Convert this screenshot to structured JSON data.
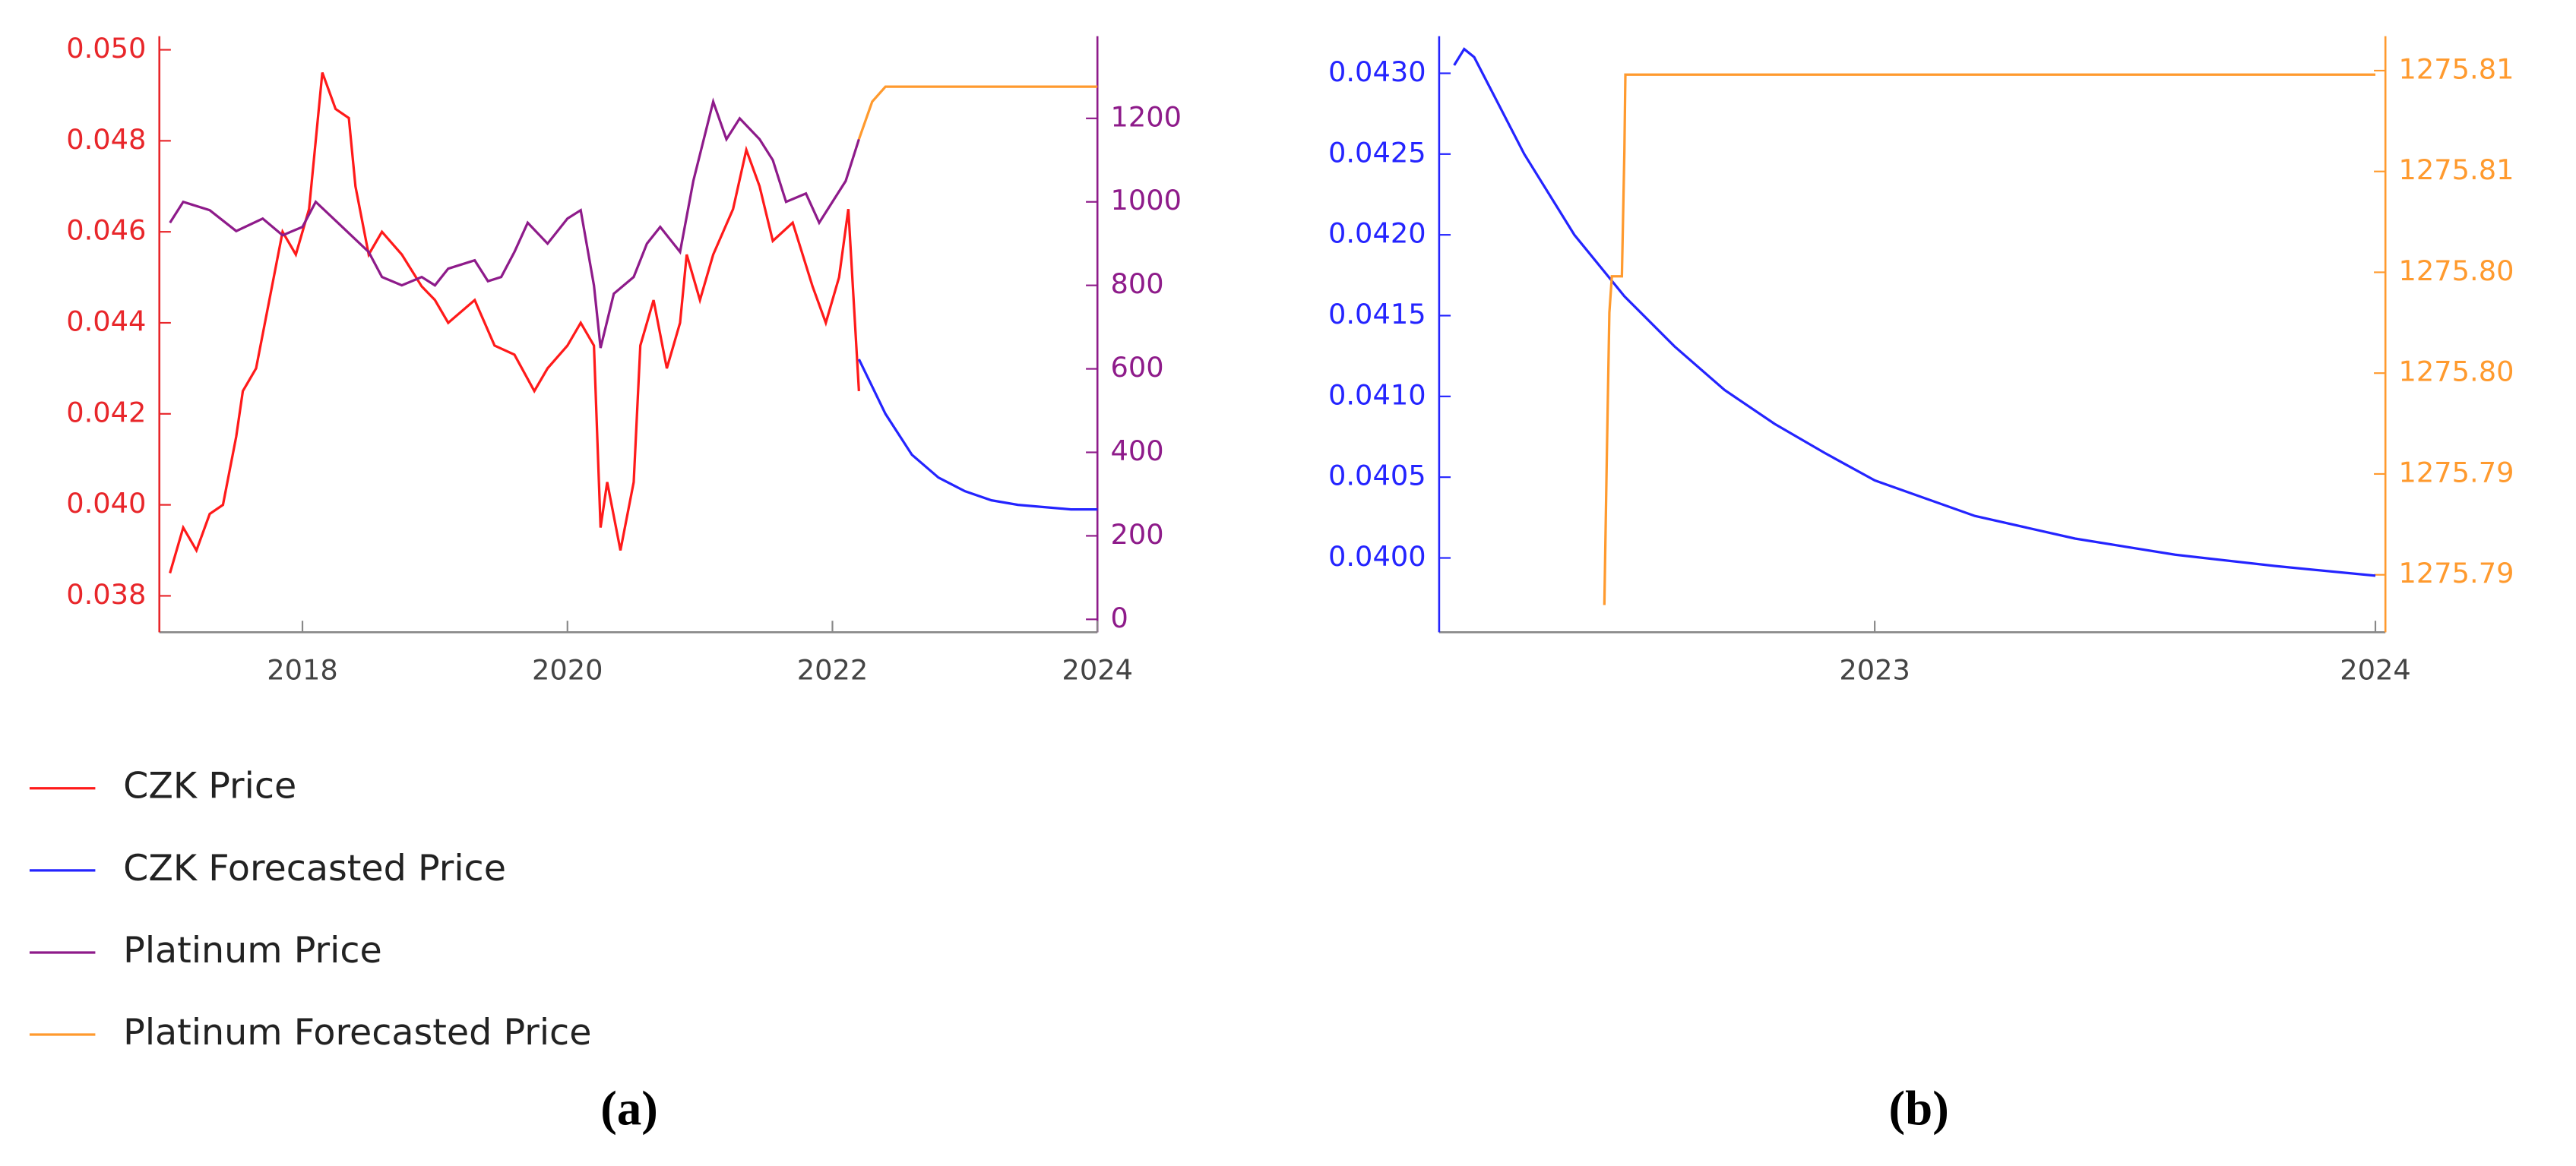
{
  "chart_data": [
    {
      "type": "line",
      "panel_label": "(a)",
      "xlim": [
        2016.92,
        2024.0
      ],
      "xticks": [
        2018,
        2020,
        2022,
        2024
      ],
      "ylim": [
        0.0372,
        0.0503
      ],
      "yticks": [
        0.038,
        {
          "value": 0.04,
          "label": "0.040"
        },
        0.042,
        0.044,
        0.046,
        0.048,
        {
          "value": 0.05,
          "label": "0.050"
        }
      ],
      "y2lim": [
        -31,
        1397
      ],
      "y2ticks": [
        0,
        200,
        400,
        600,
        800,
        1000,
        1200
      ],
      "y_axis_color": "#e8262a",
      "y2_axis_color": "#8e1b8a",
      "legend": "bottom-left",
      "series": [
        {
          "name": "CZK Price",
          "color": "#ff1a1a",
          "x": [
            2017.0,
            2017.1,
            2017.2,
            2017.3,
            2017.4,
            2017.5,
            2017.55,
            2017.65,
            2017.75,
            2017.85,
            2017.95,
            2018.05,
            2018.1,
            2018.15,
            2018.25,
            2018.35,
            2018.4,
            2018.5,
            2018.6,
            2018.75,
            2018.9,
            2019.0,
            2019.1,
            2019.3,
            2019.45,
            2019.6,
            2019.75,
            2019.85,
            2020.0,
            2020.1,
            2020.2,
            2020.25,
            2020.3,
            2020.4,
            2020.5,
            2020.55,
            2020.65,
            2020.75,
            2020.85,
            2020.9,
            2021.0,
            2021.1,
            2021.25,
            2021.35,
            2021.45,
            2021.55,
            2021.7,
            2021.85,
            2021.95,
            2022.05,
            2022.12,
            2022.17,
            2022.2
          ],
          "values": [
            0.0385,
            0.0395,
            0.039,
            0.0398,
            0.04,
            0.0415,
            0.0425,
            0.043,
            0.0445,
            0.046,
            0.0455,
            0.0465,
            0.048,
            0.0495,
            0.0487,
            0.0485,
            0.047,
            0.0455,
            0.046,
            0.0455,
            0.0448,
            0.0445,
            0.044,
            0.0445,
            0.0435,
            0.0433,
            0.0425,
            0.043,
            0.0435,
            0.044,
            0.0435,
            0.0395,
            0.0405,
            0.039,
            0.0405,
            0.0435,
            0.0445,
            0.043,
            0.044,
            0.0455,
            0.0445,
            0.0455,
            0.0465,
            0.0478,
            0.047,
            0.0458,
            0.0462,
            0.0448,
            0.044,
            0.045,
            0.0465,
            0.044,
            0.0425
          ]
        },
        {
          "name": "CZK Forecasted Price",
          "color": "#2424ff",
          "x": [
            2022.2,
            2022.4,
            2022.6,
            2022.8,
            2023.0,
            2023.2,
            2023.4,
            2023.6,
            2023.8,
            2024.0
          ],
          "values": [
            0.0432,
            0.042,
            0.0411,
            0.0406,
            0.0403,
            0.0401,
            0.04,
            0.03995,
            0.0399,
            0.0399
          ]
        },
        {
          "name": "Platinum Price",
          "color": "#8e1b8a",
          "axis": "y2",
          "x": [
            2017.0,
            2017.1,
            2017.3,
            2017.5,
            2017.7,
            2017.85,
            2018.0,
            2018.1,
            2018.3,
            2018.5,
            2018.6,
            2018.75,
            2018.9,
            2019.0,
            2019.1,
            2019.3,
            2019.4,
            2019.5,
            2019.6,
            2019.7,
            2019.85,
            2020.0,
            2020.1,
            2020.2,
            2020.25,
            2020.35,
            2020.5,
            2020.6,
            2020.7,
            2020.85,
            2020.95,
            2021.1,
            2021.2,
            2021.3,
            2021.45,
            2021.55,
            2021.65,
            2021.8,
            2021.9,
            2022.0,
            2022.1,
            2022.2
          ],
          "values": [
            950,
            1000,
            980,
            930,
            960,
            920,
            940,
            1000,
            940,
            880,
            820,
            800,
            820,
            800,
            840,
            860,
            810,
            820,
            880,
            950,
            900,
            960,
            980,
            800,
            650,
            780,
            820,
            900,
            940,
            880,
            1050,
            1240,
            1150,
            1200,
            1150,
            1100,
            1000,
            1020,
            950,
            1000,
            1050,
            1150
          ]
        },
        {
          "name": "Platinum Forecasted Price",
          "color": "#ff9a2e",
          "axis": "y2",
          "x": [
            2022.2,
            2022.3,
            2022.4,
            2024.0
          ],
          "values": [
            1150,
            1240,
            1275.8,
            1275.81
          ]
        }
      ]
    },
    {
      "type": "line",
      "panel_label": "(b)",
      "xlim": [
        2022.13,
        2024.02
      ],
      "xticks": [
        2023,
        2024
      ],
      "ylim": [
        0.03954,
        0.04323
      ],
      "yticks": [
        {
          "value": 0.04,
          "label": "0.0400"
        },
        0.0405,
        {
          "value": 0.041,
          "label": "0.0410"
        },
        0.0415,
        {
          "value": 0.042,
          "label": "0.0420"
        },
        0.0425,
        {
          "value": 0.043,
          "label": "0.0430"
        }
      ],
      "y2lim": [
        1275.78215,
        1275.81171
      ],
      "y2ticks": [
        {
          "value": 1275.785,
          "label": "1275.79"
        },
        {
          "value": 1275.79,
          "label": "1275.79"
        },
        {
          "value": 1275.795,
          "label": "1275.80"
        },
        {
          "value": 1275.8,
          "label": "1275.80"
        },
        {
          "value": 1275.805,
          "label": "1275.81"
        },
        {
          "value": 1275.81,
          "label": "1275.81"
        }
      ],
      "y_axis_color": "#2424ff",
      "y2_axis_color": "#ff9a2e",
      "series": [
        {
          "color": "#2424ff",
          "x": [
            2022.16,
            2022.18,
            2022.2,
            2022.3,
            2022.4,
            2022.5,
            2022.6,
            2022.7,
            2022.8,
            2022.9,
            2023.0,
            2023.2,
            2023.4,
            2023.6,
            2023.8,
            2024.0
          ],
          "values": [
            0.04305,
            0.04315,
            0.0431,
            0.0425,
            0.042,
            0.04162,
            0.04131,
            0.04104,
            0.04083,
            0.04065,
            0.04048,
            0.04026,
            0.04012,
            0.04002,
            0.03995,
            0.03989
          ]
        },
        {
          "color": "#ff9a2e",
          "axis": "y2",
          "x": [
            2022.46,
            2022.465,
            2022.47,
            2022.475,
            2022.495,
            2022.5,
            2022.502,
            2024.0
          ],
          "values": [
            1275.7835,
            1275.791,
            1275.798,
            1275.7998,
            1275.7998,
            1275.806,
            1275.8098,
            1275.8098
          ]
        }
      ]
    }
  ]
}
